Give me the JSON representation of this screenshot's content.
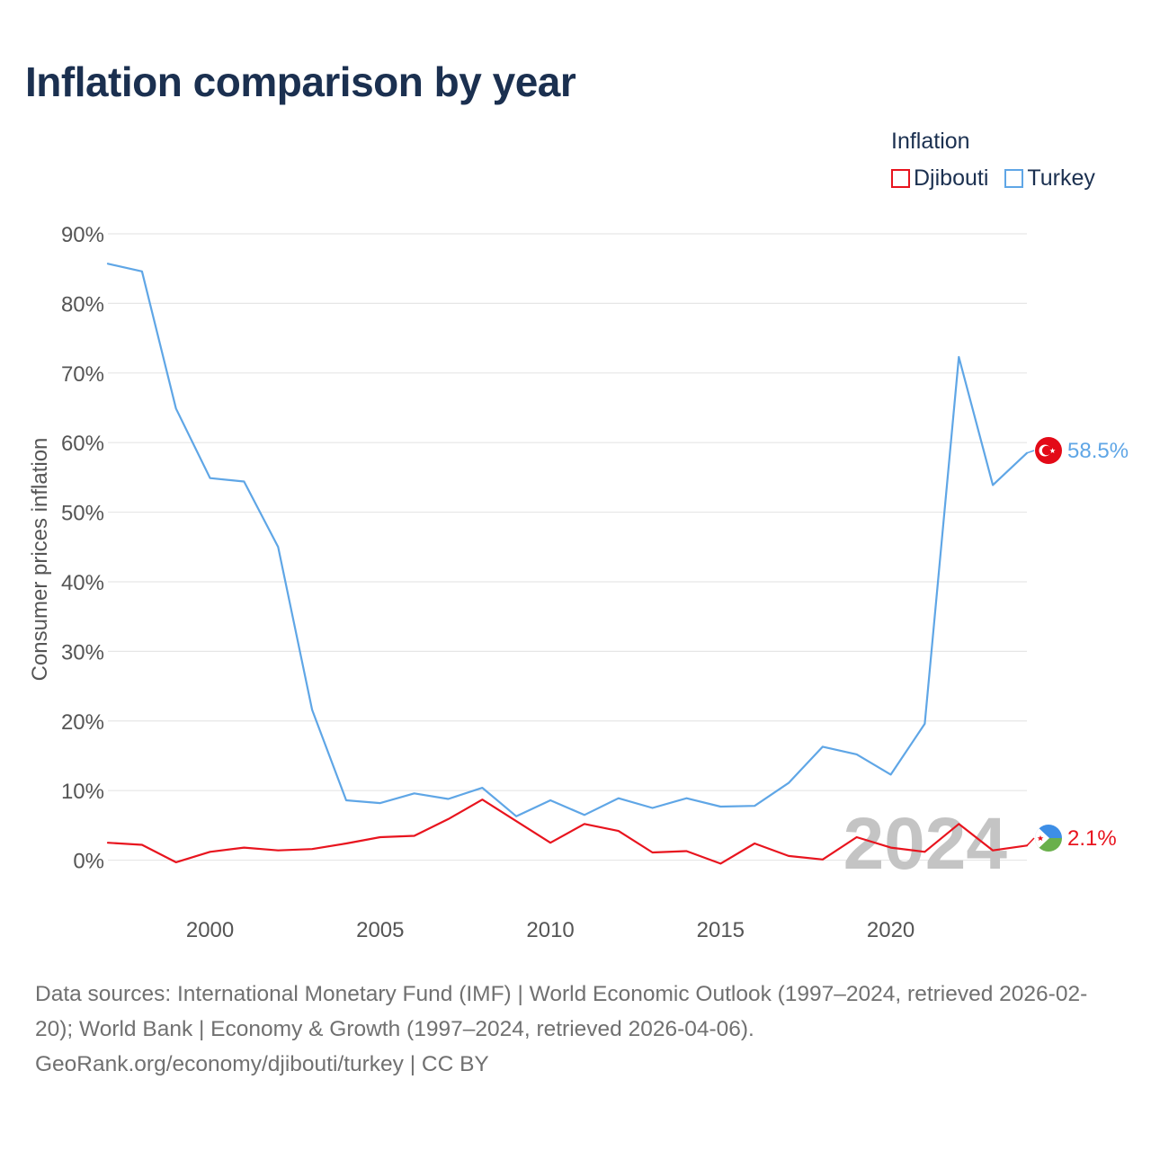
{
  "title": "Inflation comparison by year",
  "legend": {
    "title": "Inflation",
    "items": [
      {
        "label": "Djibouti",
        "color": "#e8141e"
      },
      {
        "label": "Turkey",
        "color": "#5fa6e6"
      }
    ]
  },
  "year_watermark": "2024",
  "source": {
    "line1": "Data sources: International Monetary Fund (IMF) | World Economic Outlook (1997–2024, retrieved 2026-02-20); World Bank | Economy & Growth (1997–2024, retrieved 2026-04-06).",
    "line2": "GeoRank.org/economy/djibouti/turkey | CC BY"
  },
  "colors": {
    "title": "#1b3050",
    "axis_text": "#555555",
    "grid": "#e6e6e6",
    "watermark": "#c4c4c4"
  },
  "chart_data": {
    "type": "line",
    "title": "Inflation comparison by year",
    "xlabel": "",
    "ylabel": "Consumer prices inflation",
    "x": [
      1997,
      1998,
      1999,
      2000,
      2001,
      2002,
      2003,
      2004,
      2005,
      2006,
      2007,
      2008,
      2009,
      2010,
      2011,
      2012,
      2013,
      2014,
      2015,
      2016,
      2017,
      2018,
      2019,
      2020,
      2021,
      2022,
      2023,
      2024
    ],
    "xlim": [
      1997,
      2024
    ],
    "ylim": [
      -6,
      90
    ],
    "x_ticks": [
      2000,
      2005,
      2010,
      2015,
      2020
    ],
    "y_ticks": [
      0,
      10,
      20,
      30,
      40,
      50,
      60,
      70,
      80,
      90
    ],
    "y_tick_labels": [
      "0%",
      "10%",
      "20%",
      "30%",
      "40%",
      "50%",
      "60%",
      "70%",
      "80%",
      "90%"
    ],
    "grid": true,
    "legend_position": "top-right",
    "series": [
      {
        "name": "Djibouti",
        "color": "#e8141e",
        "end_label": "2.1%",
        "values": [
          2.5,
          2.2,
          -0.3,
          1.2,
          1.8,
          1.4,
          1.6,
          2.4,
          3.3,
          3.5,
          5.9,
          8.7,
          5.6,
          2.5,
          5.2,
          4.2,
          1.1,
          1.3,
          -0.5,
          2.4,
          0.6,
          0.1,
          3.3,
          1.8,
          1.2,
          5.2,
          1.4,
          2.1
        ]
      },
      {
        "name": "Turkey",
        "color": "#5fa6e6",
        "end_label": "58.5%",
        "values": [
          85.7,
          84.6,
          64.9,
          54.9,
          54.4,
          45.0,
          21.6,
          8.6,
          8.2,
          9.6,
          8.8,
          10.4,
          6.3,
          8.6,
          6.5,
          8.9,
          7.5,
          8.9,
          7.7,
          7.8,
          11.1,
          16.3,
          15.2,
          12.3,
          19.6,
          72.3,
          53.9,
          58.5
        ]
      }
    ]
  }
}
